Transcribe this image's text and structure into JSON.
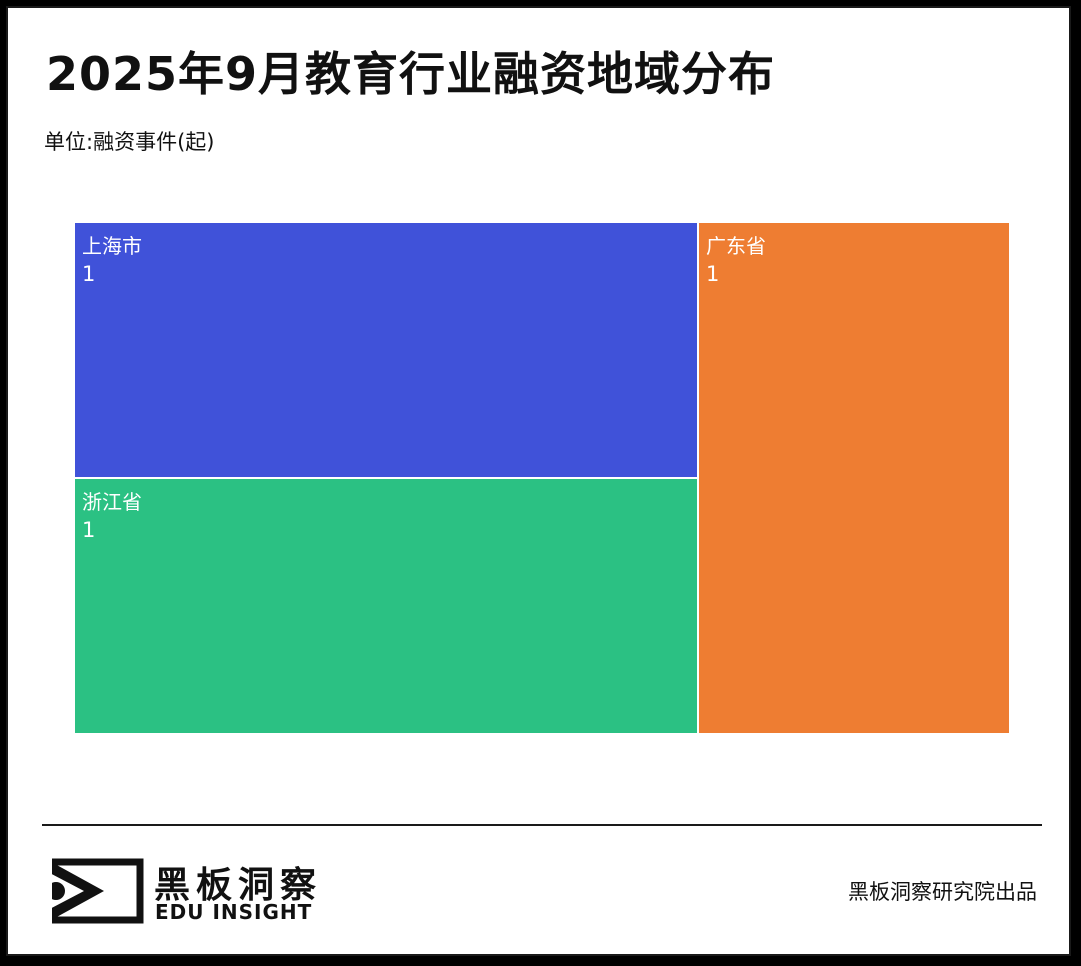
{
  "header": {
    "title": "2025年9月教育行业融资地域分布",
    "subtitle": "单位:融资事件(起)"
  },
  "chart_data": {
    "type": "treemap",
    "title": "2025年9月教育行业融资地域分布",
    "unit": "单位:融资事件(起)",
    "items": [
      {
        "name": "上海市",
        "value": 1,
        "color": "#4052D9"
      },
      {
        "name": "浙江省",
        "value": 1,
        "color": "#2BC183"
      },
      {
        "name": "广东省",
        "value": 1,
        "color": "#EE7D32"
      }
    ]
  },
  "footer": {
    "brand_cn": "黑板洞察",
    "brand_en": "EDU INSIGHT",
    "credit": "黑板洞察研究院出品"
  }
}
